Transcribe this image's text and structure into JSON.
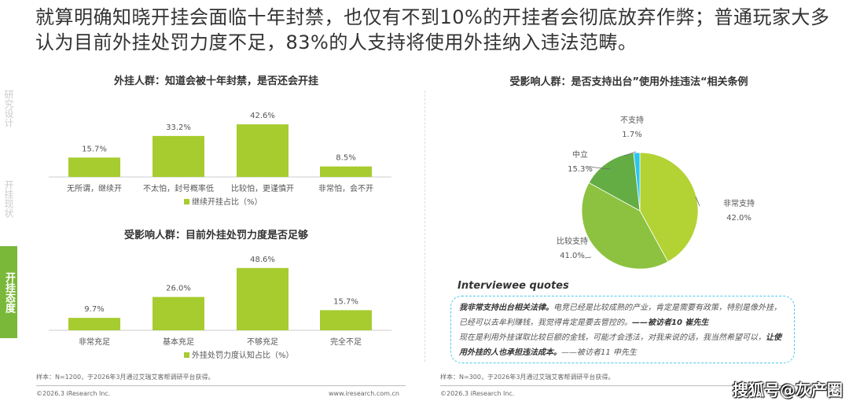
{
  "headline": "就算明确知晓开挂会面临十年封禁，也仅有不到10%的开挂者会彻底放弃作弊；普通玩家大多认为目前外挂处罚力度不足，83%的人支持将使用外挂纳入违法范畴。",
  "sidebar": [
    {
      "label": "研究设计",
      "active": false
    },
    {
      "label": "开挂现状",
      "active": false
    },
    {
      "label": "开挂态度",
      "active": true
    }
  ],
  "chart_data": [
    {
      "type": "bar",
      "title": "外挂人群：知道会被十年封禁，是否还会开挂",
      "categories": [
        "无所谓，继续开",
        "不太怕，封号概率低",
        "比较怕，更谨慎开",
        "非常怕，会不开"
      ],
      "values": [
        15.7,
        33.2,
        42.6,
        8.5
      ],
      "labels": [
        "15.7%",
        "33.2%",
        "42.6%",
        "8.5%"
      ],
      "legend": "继续开挂占比（%）",
      "color": "#a7cc2f"
    },
    {
      "type": "bar",
      "title": "受影响人群：目前外挂处罚力度是否足够",
      "categories": [
        "非常充足",
        "基本充足",
        "不够充足",
        "完全不足"
      ],
      "values": [
        9.7,
        26.0,
        48.6,
        15.7
      ],
      "labels": [
        "9.7%",
        "26.0%",
        "48.6%",
        "15.7%"
      ],
      "legend": "外挂处罚力度认知占比（%）",
      "color": "#a7cc2f"
    },
    {
      "type": "pie",
      "title": "受影响人群：是否支持出台”使用外挂违法“相关条例",
      "slices": [
        {
          "name": "非常支持",
          "value": 42.0,
          "label": "42.0%",
          "color": "#b3d234"
        },
        {
          "name": "比较支持",
          "value": 41.0,
          "label": "41.0%",
          "color": "#8cc23f"
        },
        {
          "name": "中立",
          "value": 15.3,
          "label": "15.3%",
          "color": "#64ad44"
        },
        {
          "name": "不支持",
          "value": 1.7,
          "label": "1.7%",
          "color": "#2bc5ee"
        }
      ]
    }
  ],
  "quotes": {
    "title": "Interviewee quotes",
    "q1_bold": "我非常支持出台相关法律。",
    "q1_text": "电竞已经是比较成熟的产业，肯定是需要有政策，特别是像外挂，已经可以去牟利赚钱，我觉得肯定是要去管控的。",
    "q1_src": "——被访者10 崔先生",
    "q2_text": "现在是利用外挂谋取比较巨额的金钱，可能才会违法，对我来说的话，我当然希望可以，",
    "q2_bold": "让使用外挂的人也承担违法成本。",
    "q2_src": "——被访者11 申先生"
  },
  "notes": {
    "left": "样本：N=1200，于2026年3月通过艾瑞艾客帮调研平台获得。",
    "right": "样本：N=300，于2026年3月通过艾瑞艾客帮调研平台获得。"
  },
  "footer": {
    "copyright_left": "©2026.3 iResearch Inc.",
    "url_left": "www.iresearch.com.cn",
    "copyright_right": "©2026.3 iResearch Inc."
  },
  "watermark": "搜狐号@灰产圈"
}
